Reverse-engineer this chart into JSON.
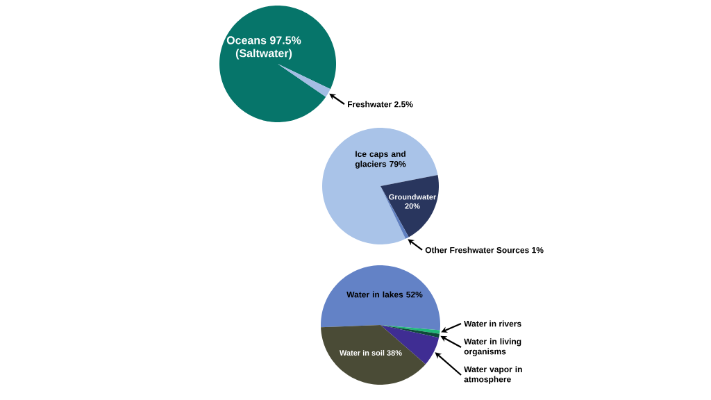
{
  "chart_data": [
    {
      "type": "pie",
      "categories": [
        "Oceans",
        "Freshwater"
      ],
      "values": [
        97.5,
        2.5
      ],
      "colors": [
        "#06756a",
        "#a3bde4"
      ],
      "value_labels": [
        "97.5%",
        "2.5%"
      ],
      "annotations": [
        "(Saltwater)"
      ]
    },
    {
      "type": "pie",
      "categories": [
        "Ice caps and glaciers",
        "Groundwater",
        "Other Freshwater Sources"
      ],
      "values": [
        79,
        20,
        1
      ],
      "colors": [
        "#a9c3e8",
        "#29365e",
        "#6080c0"
      ],
      "value_labels": [
        "79%",
        "20%",
        "1%"
      ]
    },
    {
      "type": "pie",
      "categories": [
        "Water in lakes",
        "Water in rivers",
        "Water in living organisms",
        "Water vapor in atmosphere",
        "Water in soil"
      ],
      "values": [
        52,
        1,
        1,
        8,
        38
      ],
      "colors": [
        "#6382c6",
        "#1fb879",
        "#0e4a3a",
        "#3f2d93",
        "#4a4b36"
      ],
      "value_labels": [
        "52%",
        null,
        null,
        null,
        "38%"
      ]
    }
  ]
}
